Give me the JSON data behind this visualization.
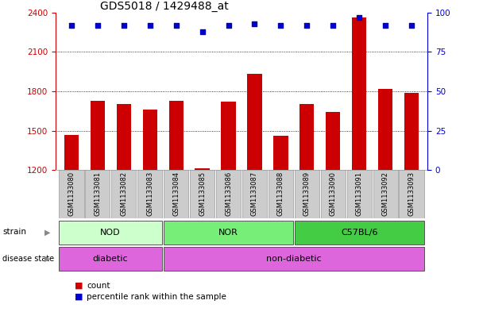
{
  "title": "GDS5018 / 1429488_at",
  "samples": [
    "GSM1133080",
    "GSM1133081",
    "GSM1133082",
    "GSM1133083",
    "GSM1133084",
    "GSM1133085",
    "GSM1133086",
    "GSM1133087",
    "GSM1133088",
    "GSM1133089",
    "GSM1133090",
    "GSM1133091",
    "GSM1133092",
    "GSM1133093"
  ],
  "counts": [
    1468,
    1730,
    1700,
    1660,
    1730,
    1215,
    1720,
    1930,
    1460,
    1700,
    1640,
    2360,
    1820,
    1790
  ],
  "percentiles": [
    92,
    92,
    92,
    92,
    92,
    88,
    92,
    93,
    92,
    92,
    92,
    97,
    92,
    92
  ],
  "ylim_left": [
    1200,
    2400
  ],
  "ylim_right": [
    0,
    100
  ],
  "yticks_left": [
    1200,
    1500,
    1800,
    2100,
    2400
  ],
  "yticks_right": [
    0,
    25,
    50,
    75,
    100
  ],
  "bar_color": "#cc0000",
  "dot_color": "#0000cc",
  "bg_color": "#ffffff",
  "strain_labels": [
    "NOD",
    "NOR",
    "C57BL/6"
  ],
  "strain_ranges": [
    [
      0,
      3
    ],
    [
      4,
      8
    ],
    [
      9,
      13
    ]
  ],
  "strain_colors": [
    "#ccffcc",
    "#77ee77",
    "#44cc44"
  ],
  "disease_labels": [
    "diabetic",
    "non-diabetic"
  ],
  "disease_ranges": [
    [
      0,
      3
    ],
    [
      4,
      13
    ]
  ],
  "disease_color": "#dd66dd",
  "panel_bg": "#cccccc",
  "title_fontsize": 10,
  "axis_label_color_left": "#cc0000",
  "axis_label_color_right": "#0000cc",
  "bar_width": 0.55
}
